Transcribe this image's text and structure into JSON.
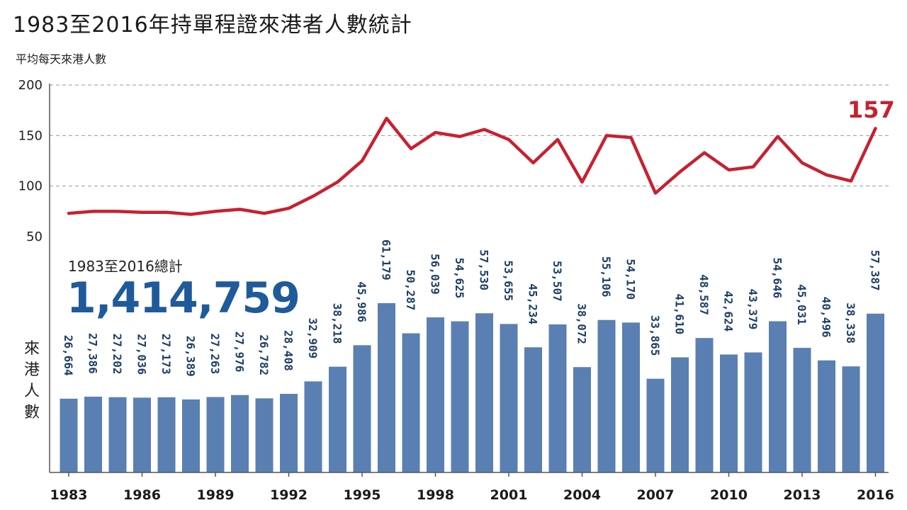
{
  "title": "1983至2016年持單程證來港者人數統計",
  "subtitle": "平均每天來港人數",
  "total": {
    "label": "1983至2016總計",
    "value": "1,414,759"
  },
  "bar_axis_label": [
    "來",
    "港",
    "人",
    "數"
  ],
  "colors": {
    "bar": "#5a7fb2",
    "line": "#c8202f",
    "total": "#1f5a9a",
    "grid": "#999999"
  },
  "chart_data": {
    "type": "bar+line",
    "title": "1983至2016年持單程證來港者人數統計",
    "years": [
      1983,
      1984,
      1985,
      1986,
      1987,
      1988,
      1989,
      1990,
      1991,
      1992,
      1993,
      1994,
      1995,
      1996,
      1997,
      1998,
      1999,
      2000,
      2001,
      2002,
      2003,
      2004,
      2005,
      2006,
      2007,
      2008,
      2009,
      2010,
      2011,
      2012,
      2013,
      2014,
      2015,
      2016
    ],
    "x_tick_labels": [
      "1983",
      "1986",
      "1989",
      "1992",
      "1995",
      "1998",
      "2001",
      "2004",
      "2007",
      "2010",
      "2013",
      "2016"
    ],
    "bar_series": {
      "ylabel": "來港人數",
      "values": [
        26664,
        27386,
        27202,
        27036,
        27173,
        26389,
        27263,
        27976,
        26782,
        28408,
        32909,
        38218,
        45986,
        61179,
        50287,
        56039,
        54625,
        57530,
        53655,
        45234,
        53507,
        38072,
        55106,
        54170,
        33865,
        41610,
        48587,
        42624,
        43379,
        54646,
        45031,
        40496,
        38338,
        57387
      ],
      "labels": [
        "26,664",
        "27,386",
        "27,202",
        "27,036",
        "27,173",
        "26,389",
        "27,263",
        "27,976",
        "26,782",
        "28,408",
        "32,909",
        "38,218",
        "45,986",
        "61,179",
        "50,287",
        "56,039",
        "54,625",
        "57,530",
        "53,655",
        "45,234",
        "53,507",
        "38,072",
        "55,106",
        "54,170",
        "33,865",
        "41,610",
        "48,587",
        "42,624",
        "43,379",
        "54,646",
        "45,031",
        "40,496",
        "38,338",
        "57,387"
      ]
    },
    "line_series": {
      "ylabel": "平均每天來港人數",
      "values": [
        73,
        75,
        75,
        74,
        74,
        72,
        75,
        77,
        73,
        78,
        90,
        104,
        125,
        167,
        137,
        153,
        149,
        156,
        146,
        123,
        146,
        104,
        150,
        148,
        93,
        114,
        133,
        116,
        119,
        149,
        123,
        111,
        105,
        157
      ],
      "end_label": "157",
      "ylim": [
        50,
        200
      ],
      "yticks": [
        "200",
        "150",
        "100",
        "50"
      ]
    },
    "grid": true
  }
}
